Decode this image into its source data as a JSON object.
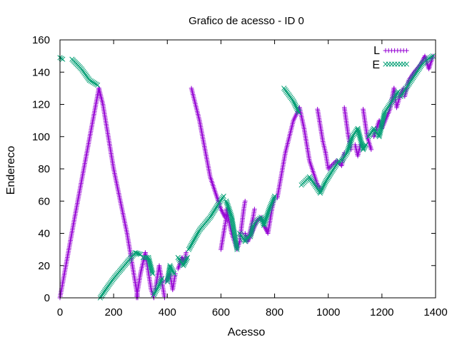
{
  "chart_data": {
    "type": "scatter",
    "title": "Grafico de acesso - ID 0",
    "xlabel": "Acesso",
    "ylabel": "Endereco",
    "xlim": [
      0,
      1400
    ],
    "ylim": [
      0,
      160
    ],
    "x_ticks": [
      0,
      200,
      400,
      600,
      800,
      1000,
      1200,
      1400
    ],
    "y_ticks": [
      0,
      20,
      40,
      60,
      80,
      100,
      120,
      140,
      160
    ],
    "grid": false,
    "legend_position": "top-right",
    "series": [
      {
        "name": "L",
        "marker": "plus",
        "color": "#9400d3",
        "segments": [
          [
            [
              0,
              0
            ],
            [
              55,
              50
            ],
            [
              100,
              90
            ],
            [
              145,
              130
            ]
          ],
          [
            [
              145,
              130
            ],
            [
              160,
              120
            ],
            [
              200,
              80
            ],
            [
              250,
              40
            ],
            [
              290,
              0
            ]
          ],
          [
            [
              285,
              0
            ],
            [
              300,
              15
            ],
            [
              318,
              28
            ]
          ],
          [
            [
              318,
              28
            ],
            [
              340,
              5
            ],
            [
              350,
              0
            ]
          ],
          [
            [
              355,
              5
            ],
            [
              370,
              20
            ],
            [
              390,
              0
            ]
          ],
          [
            [
              395,
              10
            ],
            [
              410,
              15
            ],
            [
              420,
              5
            ],
            [
              430,
              15
            ]
          ],
          [
            [
              440,
              18
            ],
            [
              455,
              25
            ],
            [
              465,
              22
            ],
            [
              470,
              28
            ]
          ],
          [
            [
              490,
              130
            ],
            [
              520,
              110
            ],
            [
              560,
              75
            ],
            [
              600,
              55
            ],
            [
              615,
              50
            ]
          ],
          [
            [
              600,
              30
            ],
            [
              615,
              45
            ],
            [
              625,
              55
            ]
          ],
          [
            [
              620,
              55
            ],
            [
              640,
              40
            ],
            [
              660,
              30
            ],
            [
              670,
              35
            ]
          ],
          [
            [
              670,
              35
            ],
            [
              685,
              55
            ],
            [
              690,
              60
            ]
          ],
          [
            [
              690,
              40
            ],
            [
              700,
              35
            ],
            [
              720,
              50
            ],
            [
              725,
              55
            ]
          ],
          [
            [
              700,
              35
            ],
            [
              720,
              42
            ],
            [
              735,
              48
            ]
          ],
          [
            [
              735,
              48
            ],
            [
              750,
              50
            ],
            [
              760,
              45
            ],
            [
              775,
              40
            ],
            [
              790,
              55
            ],
            [
              800,
              62
            ]
          ],
          [
            [
              810,
              62
            ],
            [
              840,
              90
            ],
            [
              870,
              110
            ],
            [
              893,
              118
            ]
          ],
          [
            [
              893,
              118
            ],
            [
              910,
              105
            ],
            [
              930,
              85
            ],
            [
              960,
              70
            ],
            [
              975,
              67
            ]
          ],
          [
            [
              960,
              117
            ],
            [
              980,
              97
            ],
            [
              990,
              90
            ]
          ],
          [
            [
              990,
              90
            ],
            [
              1000,
              80
            ],
            [
              1030,
              85
            ],
            [
              1050,
              82
            ],
            [
              1060,
              90
            ]
          ],
          [
            [
              1060,
              118
            ],
            [
              1075,
              100
            ],
            [
              1085,
              92
            ]
          ],
          [
            [
              1100,
              95
            ],
            [
              1110,
              88
            ],
            [
              1120,
              95
            ]
          ],
          [
            [
              1130,
              117
            ],
            [
              1145,
              100
            ],
            [
              1160,
              92
            ]
          ],
          [
            [
              1170,
              100
            ],
            [
              1190,
              110
            ],
            [
              1200,
              105
            ],
            [
              1230,
              117
            ],
            [
              1245,
              130
            ]
          ],
          [
            [
              1245,
              130
            ],
            [
              1255,
              118
            ],
            [
              1265,
              124
            ],
            [
              1280,
              130
            ]
          ],
          [
            [
              1285,
              125
            ],
            [
              1300,
              135
            ],
            [
              1320,
              140
            ],
            [
              1345,
              145
            ],
            [
              1360,
              150
            ],
            [
              1375,
              142
            ],
            [
              1390,
              150
            ]
          ]
        ]
      },
      {
        "name": "E",
        "marker": "cross",
        "color": "#009e73",
        "segments": [
          [
            [
              0,
              149
            ],
            [
              10,
              148
            ]
          ],
          [
            [
              45,
              148
            ],
            [
              80,
              142
            ],
            [
              110,
              135
            ],
            [
              140,
              132
            ]
          ],
          [
            [
              150,
              0
            ],
            [
              170,
              5
            ],
            [
              200,
              12
            ],
            [
              240,
              20
            ],
            [
              280,
              28
            ],
            [
              300,
              27
            ]
          ],
          [
            [
              310,
              25
            ],
            [
              330,
              25
            ],
            [
              345,
              15
            ]
          ],
          [
            [
              350,
              2
            ],
            [
              370,
              8
            ],
            [
              380,
              12
            ]
          ],
          [
            [
              400,
              10
            ],
            [
              410,
              20
            ],
            [
              425,
              15
            ]
          ],
          [
            [
              440,
              25
            ],
            [
              460,
              20
            ],
            [
              475,
              25
            ]
          ],
          [
            [
              480,
              30
            ],
            [
              520,
              42
            ],
            [
              560,
              50
            ],
            [
              590,
              58
            ],
            [
              610,
              63
            ]
          ],
          [
            [
              620,
              60
            ],
            [
              640,
              50
            ],
            [
              660,
              30
            ]
          ],
          [
            [
              670,
              40
            ],
            [
              690,
              35
            ],
            [
              700,
              38
            ]
          ],
          [
            [
              710,
              38
            ],
            [
              720,
              45
            ],
            [
              735,
              48
            ],
            [
              750,
              50
            ],
            [
              760,
              45
            ],
            [
              780,
              55
            ],
            [
              800,
              63
            ]
          ],
          [
            [
              835,
              130
            ],
            [
              870,
              122
            ],
            [
              890,
              115
            ]
          ],
          [
            [
              900,
              70
            ],
            [
              930,
              75
            ],
            [
              950,
              70
            ],
            [
              970,
              65
            ],
            [
              990,
              72
            ],
            [
              1020,
              80
            ],
            [
              1040,
              85
            ]
          ],
          [
            [
              1050,
              85
            ],
            [
              1070,
              90
            ],
            [
              1090,
              100
            ],
            [
              1110,
              105
            ],
            [
              1130,
              92
            ],
            [
              1140,
              95
            ]
          ],
          [
            [
              1150,
              100
            ],
            [
              1170,
              105
            ],
            [
              1190,
              100
            ],
            [
              1210,
              115
            ],
            [
              1230,
              120
            ],
            [
              1250,
              125
            ],
            [
              1260,
              128
            ]
          ],
          [
            [
              1270,
              125
            ],
            [
              1290,
              130
            ],
            [
              1310,
              135
            ],
            [
              1330,
              140
            ],
            [
              1350,
              145
            ],
            [
              1370,
              148
            ],
            [
              1390,
              150
            ]
          ]
        ]
      }
    ]
  }
}
